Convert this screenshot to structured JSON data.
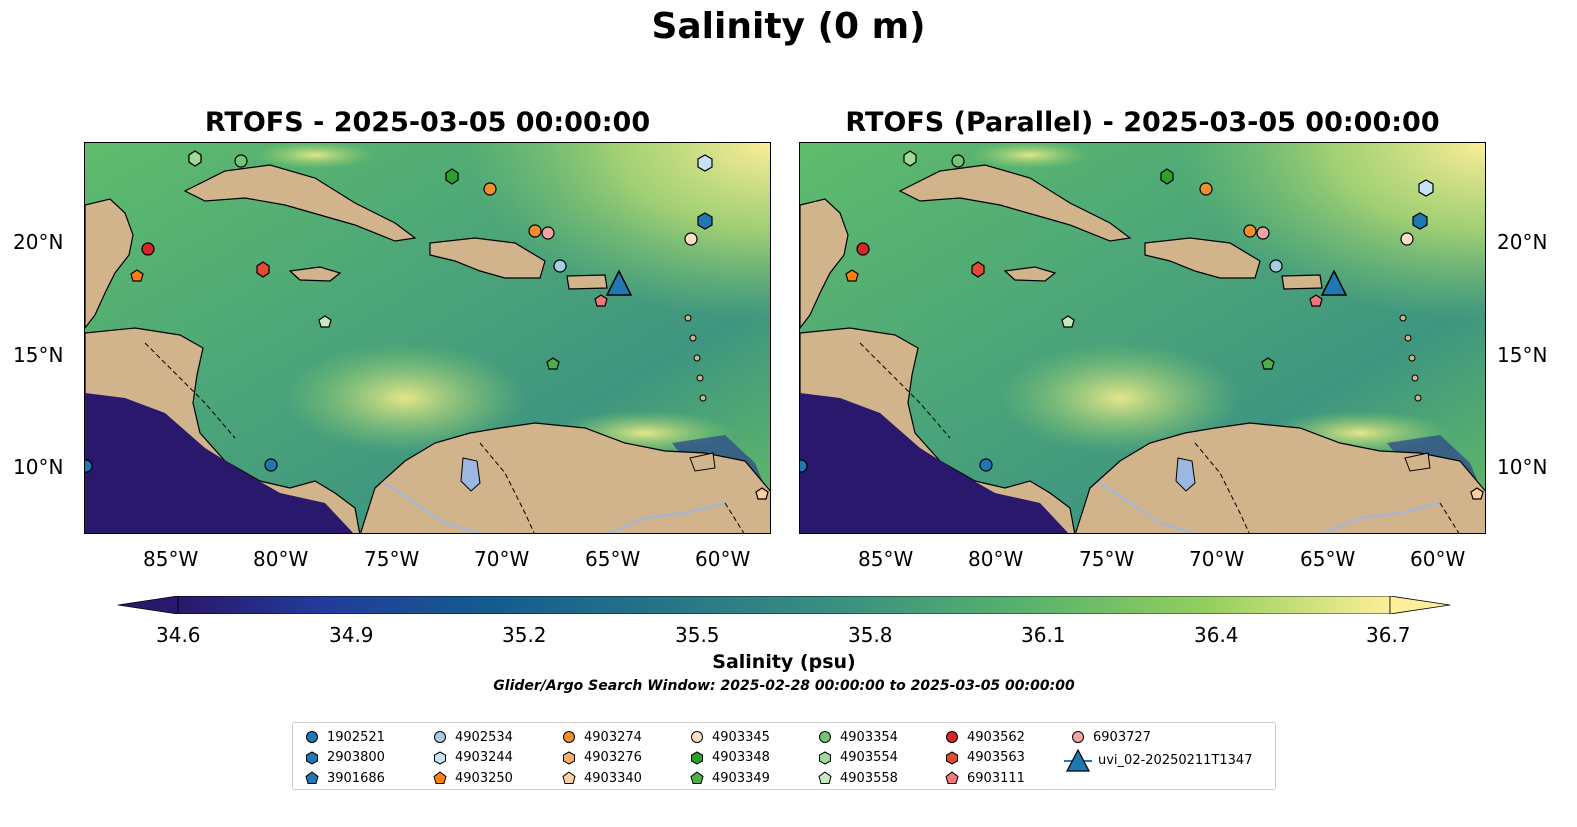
{
  "title": "Salinity (0 m)",
  "panels": [
    {
      "title": "RTOFS - 2025-03-05 00:00:00"
    },
    {
      "title": "RTOFS (Parallel) - 2025-03-05 00:00:00"
    }
  ],
  "axes": {
    "x_ticks": [
      "85°W",
      "80°W",
      "75°W",
      "70°W",
      "65°W",
      "60°W"
    ],
    "y_ticks": [
      "20°N",
      "15°N",
      "10°N"
    ]
  },
  "colorbar": {
    "label": "Salinity (psu)",
    "ticks": [
      "34.6",
      "34.9",
      "35.2",
      "35.5",
      "35.8",
      "36.1",
      "36.4",
      "36.7"
    ],
    "range": [
      34.6,
      36.7
    ],
    "colormap": "haline",
    "extend": "both"
  },
  "search_window": "Glider/Argo Search Window: 2025-02-28 00:00:00 to 2025-03-05 00:00:00",
  "colors": {
    "land": "#d2b48c",
    "low_salinity": "#2a186c",
    "high_salinity": "#fdee99",
    "lake": "#9db8e0",
    "glider": "#1f77b4"
  },
  "legend": {
    "placement": "bottom-center",
    "columns": [
      [
        {
          "label": "1902521",
          "marker": "circle",
          "color": "#1f77b4"
        },
        {
          "label": "2903800",
          "marker": "hexagon",
          "color": "#1f77b4"
        },
        {
          "label": "3901686",
          "marker": "pentagon",
          "color": "#1f77b4"
        }
      ],
      [
        {
          "label": "4902534",
          "marker": "circle",
          "color": "#a6cee3"
        },
        {
          "label": "4903244",
          "marker": "hexagon",
          "color": "#c6e2f7"
        },
        {
          "label": "4903250",
          "marker": "pentagon",
          "color": "#ff7f0e"
        }
      ],
      [
        {
          "label": "4903274",
          "marker": "circle",
          "color": "#f28e2b"
        },
        {
          "label": "4903276",
          "marker": "hexagon",
          "color": "#fdae6b"
        },
        {
          "label": "4903340",
          "marker": "pentagon",
          "color": "#fdd0a2"
        }
      ],
      [
        {
          "label": "4903345",
          "marker": "circle",
          "color": "#fde0c5"
        },
        {
          "label": "4903348",
          "marker": "hexagon",
          "color": "#2ca02c"
        },
        {
          "label": "4903349",
          "marker": "pentagon",
          "color": "#4daf4a"
        }
      ],
      [
        {
          "label": "4903354",
          "marker": "circle",
          "color": "#74c476"
        },
        {
          "label": "4903554",
          "marker": "hexagon",
          "color": "#a1d99b"
        },
        {
          "label": "4903558",
          "marker": "pentagon",
          "color": "#c7e9c0"
        }
      ],
      [
        {
          "label": "4903562",
          "marker": "circle",
          "color": "#d62728"
        },
        {
          "label": "4903563",
          "marker": "hexagon",
          "color": "#e34a33"
        },
        {
          "label": "6903111",
          "marker": "pentagon",
          "color": "#f2777a"
        }
      ],
      [
        {
          "label": "6903727",
          "marker": "circle",
          "color": "#f4a3a3"
        },
        {
          "label": "uvi_02-20250211T1347",
          "marker": "triangle",
          "color": "#1f77b4"
        }
      ]
    ]
  }
}
